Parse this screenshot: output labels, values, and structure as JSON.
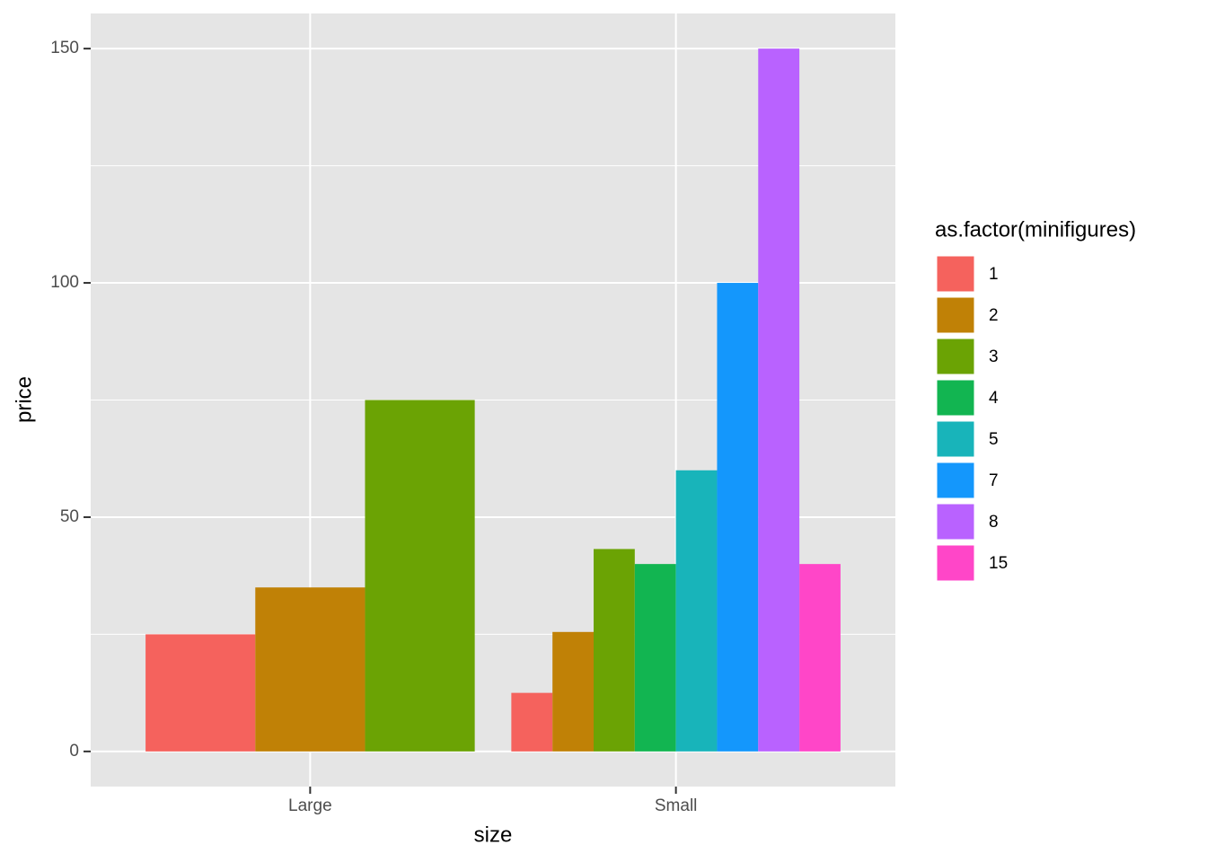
{
  "chart_data": {
    "type": "bar",
    "x_label": "size",
    "y_label": "price",
    "legend_title": "as.factor(minifigures)",
    "legend_position": "right",
    "categories": [
      "Large",
      "Small"
    ],
    "series": [
      {
        "name": "1",
        "color": "#F5625D",
        "values": [
          25,
          12.5
        ]
      },
      {
        "name": "2",
        "color": "#C08106",
        "values": [
          35,
          25.5
        ]
      },
      {
        "name": "3",
        "color": "#6BA304",
        "values": [
          75,
          43.2
        ]
      },
      {
        "name": "4",
        "color": "#12B551",
        "values": [
          null,
          40
        ]
      },
      {
        "name": "5",
        "color": "#18B4BA",
        "values": [
          null,
          60
        ]
      },
      {
        "name": "7",
        "color": "#1497FC",
        "values": [
          null,
          100
        ]
      },
      {
        "name": "8",
        "color": "#B962FF",
        "values": [
          null,
          150
        ]
      },
      {
        "name": "15",
        "color": "#FF46C8",
        "values": [
          null,
          40
        ]
      }
    ],
    "ylim": [
      -7.5,
      157.5
    ],
    "yticks": [
      0,
      50,
      100,
      150
    ],
    "yminor": [
      25,
      75,
      125
    ],
    "grid": true
  }
}
